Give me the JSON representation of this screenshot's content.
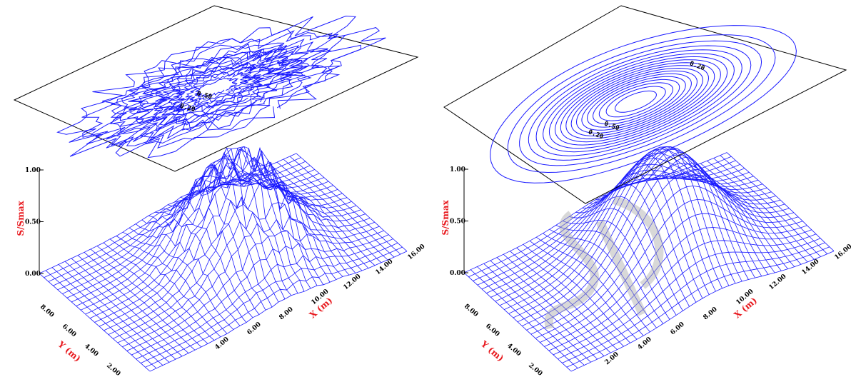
{
  "chart_data": [
    {
      "type": "surface",
      "variant": "measured",
      "x_axis": {
        "label": "X (m)",
        "ticks": [
          "4.00",
          "6.00",
          "8.00",
          "10.00",
          "12.00",
          "14.00",
          "16.00"
        ],
        "range": [
          0,
          16
        ]
      },
      "y_axis": {
        "label": "Y (m)",
        "ticks": [
          "2.00",
          "4.00",
          "6.00",
          "8.00"
        ],
        "range": [
          0,
          10
        ]
      },
      "z_axis": {
        "label": "S/Smax",
        "ticks": [
          "0.00",
          "0.50",
          "1.00"
        ],
        "range": [
          0,
          1
        ]
      },
      "peak": {
        "x": 9,
        "y": 5,
        "value": 1.0
      },
      "spread_m": 2.3,
      "contour_labels": [
        "0.50",
        "0.20"
      ]
    },
    {
      "type": "surface",
      "variant": "model",
      "x_axis": {
        "label": "X (m)",
        "ticks": [
          "2.00",
          "4.00",
          "6.00",
          "8.00",
          "10.00",
          "12.00",
          "14.00",
          "16.00"
        ],
        "range": [
          0,
          16
        ]
      },
      "y_axis": {
        "label": "Y (m)",
        "ticks": [
          "2.00",
          "4.00",
          "6.00",
          "8.00"
        ],
        "range": [
          0,
          10
        ]
      },
      "z_axis": {
        "label": "S/Smax",
        "ticks": [
          "0.00",
          "0.50",
          "1.00"
        ],
        "range": [
          0,
          1
        ]
      },
      "peak": {
        "x": 9,
        "y": 5,
        "value": 1.0
      },
      "spread_m": 2.5,
      "contour_labels": [
        "0.20",
        "0.50",
        "0.20"
      ]
    }
  ],
  "colors": {
    "mesh": "#1a1aff",
    "axis_title": "#e8191e",
    "plane": "#000000",
    "watermark": "#a8a8a8"
  }
}
